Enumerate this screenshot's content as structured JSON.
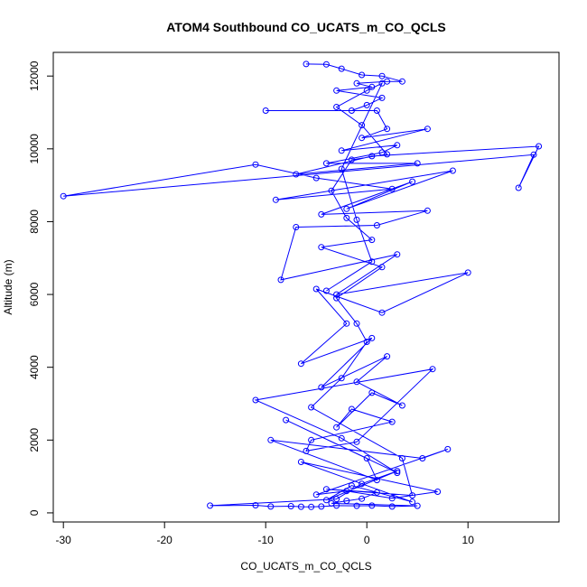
{
  "chart_data": {
    "type": "line",
    "markers": "open-circle",
    "title": "ATOM4 Southbound CO_UCATS_m_CO_QCLS",
    "xlabel": "CO_UCATS_m_CO_QCLS",
    "ylabel": "Altitude (m)",
    "xlim": [
      -31,
      19
    ],
    "ylim": [
      -250,
      12650
    ],
    "x_ticks": [
      -30,
      -20,
      -10,
      0,
      10
    ],
    "x_tick_labels": [
      "-30",
      "-20",
      "-10",
      "0",
      "10"
    ],
    "y_ticks": [
      0,
      2000,
      4000,
      6000,
      8000,
      10000,
      12000
    ],
    "y_tick_labels": [
      "0",
      "2000",
      "4000",
      "6000",
      "8000",
      "10000",
      "12000"
    ],
    "grid": false,
    "legend": "none",
    "series_color": "#0000ff",
    "series": [
      {
        "x": [
          -6,
          -4,
          -2.5,
          -0.5,
          1.5,
          3.5,
          2,
          -1,
          0.5,
          -3,
          1.5,
          0,
          -1.5,
          -10,
          1,
          2,
          -0.5,
          6,
          -2.5,
          3,
          1.5,
          -4,
          5,
          -7,
          0.5,
          17,
          15,
          16.5,
          -30,
          -11,
          -5,
          2.5,
          -9,
          8.5,
          -2,
          4.5,
          -4.5,
          6,
          1,
          -7,
          -8.5,
          3,
          -3,
          10,
          1.5,
          -5,
          -2,
          -6.5,
          0.5,
          -4.5,
          2,
          -1,
          3.5,
          0.5,
          -3,
          -1.5,
          2.5,
          -5.5,
          -6,
          -1,
          6.5,
          -11,
          -2.5,
          3,
          -8,
          0,
          1,
          -9.5,
          5.5,
          8,
          -5,
          -2,
          2.5,
          7,
          -6.5,
          4.5,
          -1.5,
          -4,
          3,
          -0.5,
          -3,
          -15.5,
          -11,
          -9.5,
          -7.5,
          -6.5,
          -5.5,
          -4.5,
          -3,
          -1,
          0.5,
          2.5,
          5,
          -3.5,
          -2,
          -0.5,
          1,
          -4,
          4.5,
          3.5,
          -5.5,
          -2.5,
          0,
          -1,
          -3,
          1.5,
          -4.5,
          0.5,
          -2,
          -3.5,
          -1.5,
          2,
          -0.5,
          -3,
          0,
          1.5,
          -2.5,
          -1,
          0.5,
          -4
        ],
        "y": [
          12330,
          12320,
          12200,
          12030,
          12000,
          11850,
          11850,
          11800,
          11700,
          11600,
          11400,
          11200,
          11050,
          11050,
          11050,
          10550,
          10300,
          10550,
          9950,
          10100,
          9900,
          9600,
          9600,
          9300,
          9800,
          10070,
          8930,
          9840,
          8700,
          9570,
          9200,
          8900,
          8600,
          9400,
          8350,
          9100,
          8200,
          8300,
          7900,
          7850,
          6400,
          7100,
          6000,
          6600,
          5500,
          6150,
          5200,
          4100,
          4800,
          3450,
          4300,
          3600,
          2950,
          3300,
          2350,
          2850,
          2500,
          2000,
          1700,
          1950,
          3950,
          3100,
          2050,
          1100,
          2550,
          1500,
          900,
          2000,
          1500,
          1750,
          500,
          600,
          400,
          580,
          1400,
          300,
          750,
          350,
          1150,
          800,
          380,
          200,
          210,
          175,
          185,
          170,
          165,
          175,
          200,
          195,
          200,
          175,
          195,
          260,
          330,
          390,
          560,
          650,
          480,
          1500,
          2900,
          3700,
          4700,
          5200,
          5900,
          6750,
          7300,
          7500,
          8100,
          8850,
          9700,
          9850,
          10650,
          11150,
          11600,
          11800,
          9450,
          8050,
          6900,
          6100
        ]
      }
    ]
  }
}
